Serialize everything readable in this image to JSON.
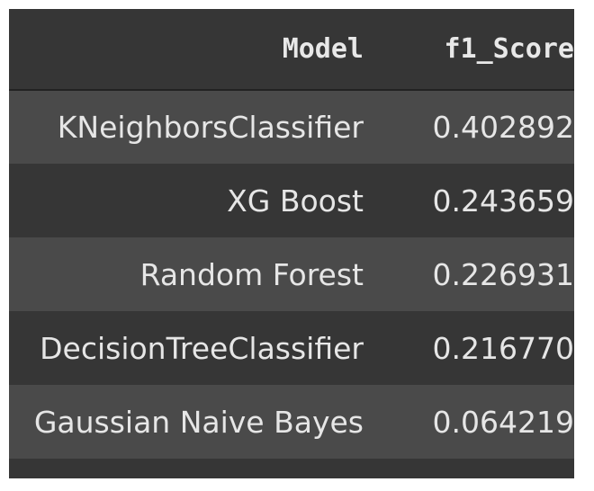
{
  "table": {
    "columns": [
      "Model",
      "f1_Score"
    ],
    "rows": [
      {
        "model": "KNeighborsClassifier",
        "f1_score": "0.402892"
      },
      {
        "model": "XG Boost",
        "f1_score": "0.243659"
      },
      {
        "model": "Random Forest",
        "f1_score": "0.226931"
      },
      {
        "model": "DecisionTreeClassifier",
        "f1_score": "0.216770"
      },
      {
        "model": "Gaussian Naive Bayes",
        "f1_score": "0.064219"
      }
    ]
  },
  "colors": {
    "background": "#363636",
    "row_stripe": "#4a4a4a",
    "text": "#e6e6e6"
  }
}
